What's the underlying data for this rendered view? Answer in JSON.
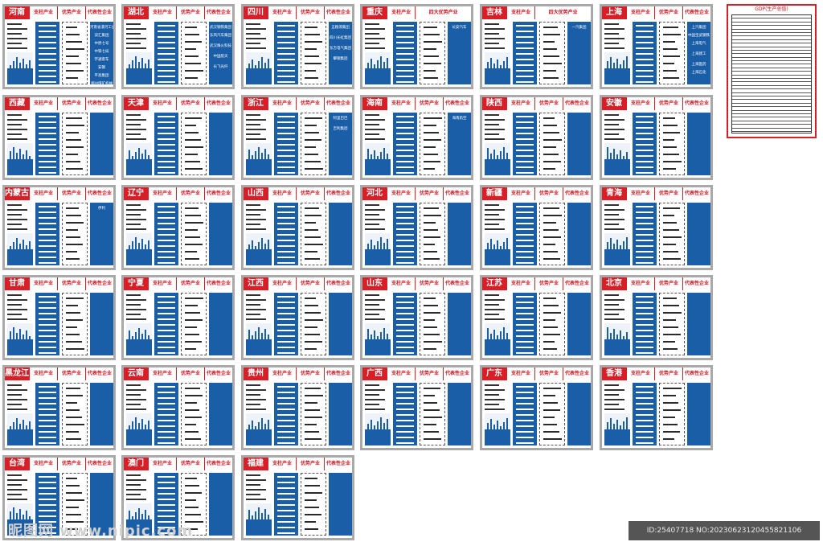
{
  "labels": {
    "pillar": "支柱产业",
    "advantage": "优势产业",
    "representative": "代表性企业"
  },
  "provinces": [
    {
      "name": "河南",
      "h3": "优势产业",
      "h4": "代表性企业",
      "ents": [
        "河南省漯河工业",
        "双汇集团",
        "中原七号",
        "中铁七局",
        "宇通客车",
        "安钢",
        "平高集团",
        "郑州煤矿机械"
      ]
    },
    {
      "name": "湖北",
      "h3": "优势产业",
      "h4": "代表性企业",
      "ents": [
        "武汉钢铁集团",
        "东风汽车集团",
        "",
        "武汉烽火科技",
        "",
        "中国航天",
        "",
        "长飞光纤"
      ]
    },
    {
      "name": "四川",
      "h3": "优势产业",
      "h4": "代表性企业",
      "ents": [
        "五粮液集团",
        "",
        "四川长虹集团",
        "",
        "东方电气集团",
        "",
        "攀钢集团",
        ""
      ]
    },
    {
      "name": "重庆",
      "h3": "四大优势产业",
      "h4": "",
      "ents": [
        "长安汽车",
        "",
        "",
        "",
        "",
        "",
        ""
      ]
    },
    {
      "name": "吉林",
      "h3": "四大优势产业",
      "h4": "",
      "ents": [
        "一汽集团",
        "",
        "",
        "",
        "",
        "",
        "",
        ""
      ]
    },
    {
      "name": "上海",
      "h3": "优势产业",
      "h4": "代表性企业",
      "ents": [
        "上汽集团",
        "中国宝武钢铁",
        "上海电气",
        "",
        "上海建工",
        "",
        "上海医药",
        "上海石化"
      ]
    },
    {
      "name": "西藏",
      "h3": "优势产业",
      "h4": "代表性企业",
      "ents": [
        "",
        "",
        "",
        "",
        "",
        "",
        "",
        ""
      ]
    },
    {
      "name": "天津",
      "h3": "优势产业",
      "h4": "代表性企业",
      "ents": [
        "",
        "",
        "",
        "",
        "",
        "",
        "",
        ""
      ]
    },
    {
      "name": "浙江",
      "h3": "优势产业",
      "h4": "代表性企业",
      "ents": [
        "阿里巴巴",
        "",
        "吉利集团",
        "",
        "",
        "",
        ""
      ]
    },
    {
      "name": "海南",
      "h3": "优势产业",
      "h4": "代表性企业",
      "ents": [
        "海南航空",
        "",
        "",
        "",
        "",
        "",
        ""
      ]
    },
    {
      "name": "陕西",
      "h3": "优势产业",
      "h4": "代表性企业",
      "ents": [
        "",
        "",
        "",
        "",
        "",
        "",
        "",
        ""
      ]
    },
    {
      "name": "安徽",
      "h3": "优势产业",
      "h4": "代表性企业",
      "ents": [
        "",
        "",
        "",
        "",
        "",
        "",
        "",
        ""
      ]
    },
    {
      "name": "内蒙古",
      "h3": "优势产业",
      "h4": "代表性企业",
      "ents": [
        "伊利",
        "",
        "",
        "",
        "",
        "",
        "",
        ""
      ]
    },
    {
      "name": "辽宁",
      "h3": "优势产业",
      "h4": "代表性企业",
      "ents": [
        "",
        "",
        "",
        "",
        "",
        "",
        "",
        ""
      ]
    },
    {
      "name": "山西",
      "h3": "优势产业",
      "h4": "代表性企业",
      "ents": [
        "",
        "",
        "",
        "",
        "",
        "",
        "",
        ""
      ]
    },
    {
      "name": "河北",
      "h3": "优势产业",
      "h4": "代表性企业",
      "ents": [
        "",
        "",
        "",
        "",
        "",
        "",
        "",
        ""
      ]
    },
    {
      "name": "新疆",
      "h3": "优势产业",
      "h4": "代表性企业",
      "ents": [
        "",
        "",
        "",
        "",
        "",
        "",
        "",
        ""
      ]
    },
    {
      "name": "青海",
      "h3": "优势产业",
      "h4": "代表性企业",
      "ents": [
        "",
        "",
        "",
        "",
        "",
        "",
        "",
        ""
      ]
    },
    {
      "name": "甘肃",
      "h3": "优势产业",
      "h4": "代表性企业",
      "ents": [
        "",
        "",
        "",
        "",
        "",
        "",
        "",
        ""
      ]
    },
    {
      "name": "宁夏",
      "h3": "优势产业",
      "h4": "代表性企业",
      "ents": [
        "",
        "",
        "",
        "",
        "",
        "",
        "",
        ""
      ]
    },
    {
      "name": "江西",
      "h3": "优势产业",
      "h4": "代表性企业",
      "ents": [
        "",
        "",
        "",
        "",
        "",
        "",
        "",
        ""
      ]
    },
    {
      "name": "山东",
      "h3": "优势产业",
      "h4": "代表性企业",
      "ents": [
        "",
        "",
        "",
        "",
        "",
        "",
        "",
        ""
      ]
    },
    {
      "name": "江苏",
      "h3": "优势产业",
      "h4": "代表性企业",
      "ents": [
        "",
        "",
        "",
        "",
        "",
        "",
        "",
        ""
      ]
    },
    {
      "name": "北京",
      "h3": "优势产业",
      "h4": "代表性企业",
      "ents": [
        "",
        "",
        "",
        "",
        "",
        "",
        "",
        ""
      ]
    },
    {
      "name": "黑龙江",
      "h3": "优势产业",
      "h4": "代表性企业",
      "ents": [
        "",
        "",
        "",
        "",
        "",
        "",
        "",
        ""
      ]
    },
    {
      "name": "云南",
      "h3": "优势产业",
      "h4": "代表性企业",
      "ents": [
        "",
        "",
        "",
        "",
        "",
        "",
        "",
        ""
      ]
    },
    {
      "name": "贵州",
      "h3": "优势产业",
      "h4": "代表性企业",
      "ents": [
        "",
        "",
        "",
        "",
        "",
        "",
        "",
        ""
      ]
    },
    {
      "name": "广西",
      "h3": "优势产业",
      "h4": "代表性企业",
      "ents": [
        "",
        "",
        "",
        "",
        "",
        "",
        "",
        ""
      ]
    },
    {
      "name": "广东",
      "h3": "优势产业",
      "h4": "代表性企业",
      "ents": [
        "",
        "",
        "",
        "",
        "",
        "",
        "",
        ""
      ]
    },
    {
      "name": "香港",
      "h3": "优势产业",
      "h4": "代表性企业",
      "ents": [
        "",
        "",
        "",
        "",
        "",
        "",
        "",
        ""
      ]
    },
    {
      "name": "台湾",
      "h3": "优势产业",
      "h4": "代表性企业",
      "ents": [
        "",
        "",
        "",
        "",
        "",
        "",
        "",
        ""
      ]
    },
    {
      "name": "澳门",
      "h3": "优势产业",
      "h4": "代表性企业",
      "ents": [
        "",
        "",
        "",
        "",
        "",
        "",
        "",
        ""
      ]
    },
    {
      "name": "福建",
      "h3": "优势产业",
      "h4": "代表性企业",
      "ents": [
        "",
        "",
        "",
        "",
        "",
        "",
        "",
        ""
      ]
    }
  ],
  "gdp_title": "GDP(生产总值)",
  "watermark": "昵图网 www.nipic.com",
  "footer": "ID:25407718 NO:20230623120455821106"
}
